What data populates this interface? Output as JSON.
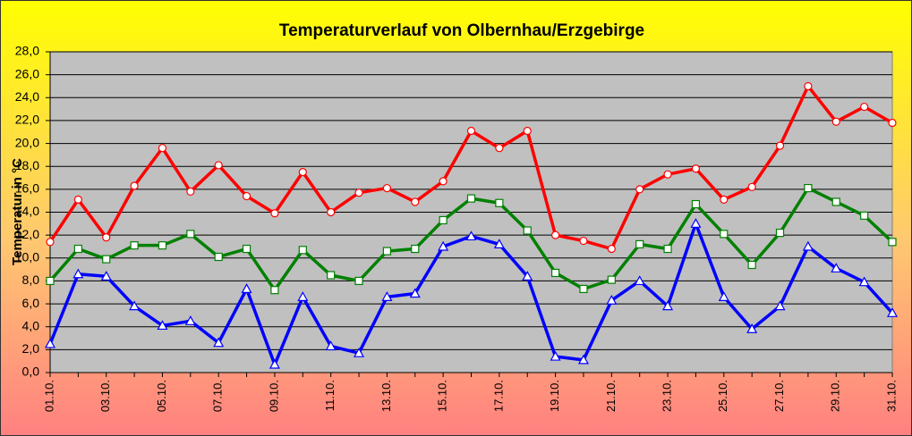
{
  "chart_data": {
    "type": "line",
    "title": "Temperaturverlauf von Olbernhau/Erzgebirge",
    "y_label": "Temperatur in °C",
    "categories": [
      "01.10.",
      null,
      "03.10.",
      null,
      "05.10.",
      null,
      "07.10.",
      null,
      "09.10.",
      null,
      "11.10.",
      null,
      "13.10.",
      null,
      "15.10.",
      null,
      "17.10.",
      null,
      "19.10.",
      null,
      "21.10.",
      null,
      "23.10.",
      null,
      "25.10.",
      null,
      "27.10.",
      null,
      "29.10.",
      null,
      "31.10."
    ],
    "series": [
      {
        "color": "#ff0000",
        "marker": "circle",
        "values": [
          11.4,
          15.1,
          11.8,
          16.3,
          19.6,
          15.8,
          18.1,
          15.4,
          13.9,
          17.5,
          14.0,
          15.7,
          16.1,
          14.9,
          16.7,
          21.1,
          19.6,
          21.1,
          12.0,
          11.5,
          10.8,
          16.0,
          17.3,
          17.8,
          15.1,
          16.2,
          19.8,
          25.0,
          21.9,
          23.2,
          21.8
        ]
      },
      {
        "color": "#008000",
        "marker": "square",
        "values": [
          8.0,
          10.8,
          9.9,
          11.1,
          11.1,
          12.1,
          10.1,
          10.8,
          7.2,
          10.7,
          8.5,
          8.0,
          10.6,
          10.8,
          13.3,
          15.2,
          14.8,
          12.4,
          8.7,
          7.3,
          8.1,
          11.2,
          10.8,
          14.7,
          12.1,
          9.4,
          12.2,
          16.1,
          14.9,
          13.7,
          11.4
        ]
      },
      {
        "color": "#0000ff",
        "marker": "triangle",
        "values": [
          2.5,
          8.6,
          8.4,
          5.8,
          4.1,
          4.5,
          2.6,
          7.3,
          0.7,
          6.6,
          2.3,
          1.7,
          6.6,
          6.9,
          11.0,
          11.9,
          11.2,
          8.4,
          1.4,
          1.1,
          6.3,
          8.0,
          5.8,
          13.0,
          6.6,
          3.8,
          5.8,
          11.0,
          9.1,
          7.9,
          5.2
        ]
      }
    ],
    "ylim": [
      0,
      28
    ],
    "yticks": [
      {
        "value": 0,
        "label": "0,0"
      },
      {
        "value": 2,
        "label": "2,0"
      },
      {
        "value": 4,
        "label": "4,0"
      },
      {
        "value": 6,
        "label": "6,0"
      },
      {
        "value": 8,
        "label": "8,0"
      },
      {
        "value": 10,
        "label": "10,0"
      },
      {
        "value": 12,
        "label": "12,0"
      },
      {
        "value": 14,
        "label": "14,0"
      },
      {
        "value": 16,
        "label": "16,0"
      },
      {
        "value": 18,
        "label": "18,0"
      },
      {
        "value": 20,
        "label": "20,0"
      },
      {
        "value": 22,
        "label": "22,0"
      },
      {
        "value": 24,
        "label": "24,0"
      },
      {
        "value": 26,
        "label": "26,0"
      },
      {
        "value": 28,
        "label": "28,0"
      }
    ],
    "grid": true,
    "plot_background": "#c0c0c0"
  }
}
